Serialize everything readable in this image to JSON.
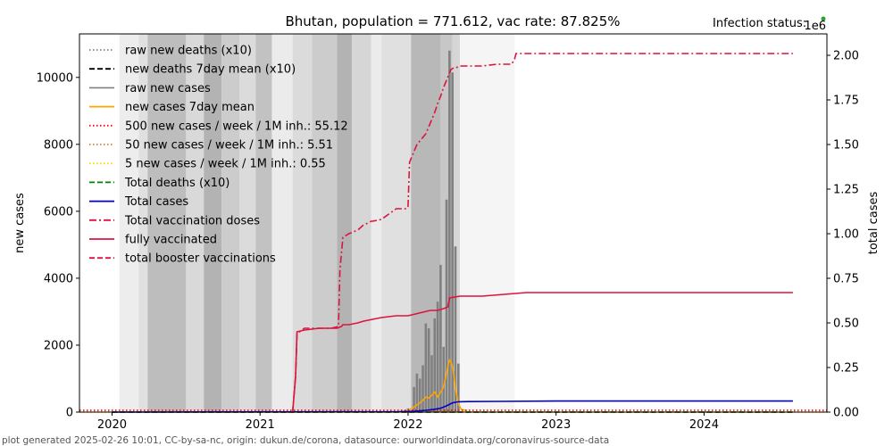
{
  "chart_data": {
    "type": "line",
    "title": "Bhutan, population = 771.612, vac rate: 87.825%",
    "status_label": "Infection status:",
    "status_color": "#2ca02c",
    "right_axis_multiplier": "1e6",
    "xlabel": "",
    "ylabel_left": "new cases",
    "ylabel_right": "total cases",
    "footer": "plot generated 2025-02-26 10:01, CC-by-sa-nc, origin: dukun.de/corona, datasource: ourworldindata.org/coronavirus-source-data",
    "xlim": [
      2019.78,
      2024.83
    ],
    "ylim_left": [
      0,
      11300
    ],
    "ylim_right": [
      0,
      2.12
    ],
    "x_ticks": [
      {
        "value": 2020,
        "label": "2020"
      },
      {
        "value": 2021,
        "label": "2021"
      },
      {
        "value": 2022,
        "label": "2022"
      },
      {
        "value": 2023,
        "label": "2023"
      },
      {
        "value": 2024,
        "label": "2024"
      }
    ],
    "y_ticks_left": [
      {
        "value": 0,
        "label": "0"
      },
      {
        "value": 2000,
        "label": "2000"
      },
      {
        "value": 4000,
        "label": "4000"
      },
      {
        "value": 6000,
        "label": "6000"
      },
      {
        "value": 8000,
        "label": "8000"
      },
      {
        "value": 10000,
        "label": "10000"
      }
    ],
    "y_ticks_right": [
      {
        "value": 0,
        "label": "0.00"
      },
      {
        "value": 0.25,
        "label": "0.25"
      },
      {
        "value": 0.5,
        "label": "0.50"
      },
      {
        "value": 0.75,
        "label": "0.75"
      },
      {
        "value": 1.0,
        "label": "1.00"
      },
      {
        "value": 1.25,
        "label": "1.25"
      },
      {
        "value": 1.5,
        "label": "1.50"
      },
      {
        "value": 1.75,
        "label": "1.75"
      },
      {
        "value": 2.0,
        "label": "2.00"
      }
    ],
    "background_bands": [
      {
        "x0": 2020.05,
        "x1": 2020.18,
        "shade": 0.93
      },
      {
        "x0": 2020.18,
        "x1": 2020.24,
        "shade": 0.88
      },
      {
        "x0": 2020.24,
        "x1": 2020.5,
        "shade": 0.74
      },
      {
        "x0": 2020.5,
        "x1": 2020.62,
        "shade": 0.85
      },
      {
        "x0": 2020.62,
        "x1": 2020.74,
        "shade": 0.7
      },
      {
        "x0": 2020.74,
        "x1": 2020.86,
        "shade": 0.8
      },
      {
        "x0": 2020.86,
        "x1": 2020.97,
        "shade": 0.86
      },
      {
        "x0": 2020.97,
        "x1": 2021.08,
        "shade": 0.76
      },
      {
        "x0": 2021.08,
        "x1": 2021.22,
        "shade": 0.92
      },
      {
        "x0": 2021.22,
        "x1": 2021.35,
        "shade": 0.86
      },
      {
        "x0": 2021.35,
        "x1": 2021.52,
        "shade": 0.8
      },
      {
        "x0": 2021.52,
        "x1": 2021.62,
        "shade": 0.7
      },
      {
        "x0": 2021.62,
        "x1": 2021.75,
        "shade": 0.84
      },
      {
        "x0": 2021.75,
        "x1": 2021.82,
        "shade": 0.92
      },
      {
        "x0": 2021.82,
        "x1": 2022.02,
        "shade": 0.88
      },
      {
        "x0": 2022.02,
        "x1": 2022.22,
        "shade": 0.72
      },
      {
        "x0": 2022.22,
        "x1": 2022.3,
        "shade": 0.78
      },
      {
        "x0": 2022.3,
        "x1": 2022.35,
        "shade": 0.84
      },
      {
        "x0": 2022.35,
        "x1": 2022.72,
        "shade": 0.96
      }
    ],
    "series": [
      {
        "name": "raw new deaths (x10)",
        "color": "#808080",
        "style": "dotted",
        "axis": "left",
        "x": [
          2020.0,
          2024.6
        ],
        "y": [
          0,
          0
        ]
      },
      {
        "name": "new deaths 7day mean (x10)",
        "color": "#000000",
        "style": "dashed",
        "axis": "left",
        "x": [
          2020.0,
          2024.6
        ],
        "y": [
          0,
          0
        ]
      },
      {
        "name": "raw new cases",
        "color": "#808080",
        "style": "bars",
        "axis": "left",
        "x": [
          2021.95,
          2022.0,
          2022.04,
          2022.06,
          2022.08,
          2022.1,
          2022.12,
          2022.14,
          2022.16,
          2022.18,
          2022.2,
          2022.22,
          2022.24,
          2022.26,
          2022.28,
          2022.3,
          2022.32,
          2022.34
        ],
        "y": [
          40,
          110,
          750,
          1150,
          1000,
          1400,
          2650,
          2500,
          1700,
          2800,
          3300,
          4400,
          1950,
          6350,
          10800,
          10150,
          4950,
          1450
        ]
      },
      {
        "name": "new cases 7day mean",
        "color": "#ffa500",
        "style": "solid",
        "axis": "left",
        "x": [
          2021.95,
          2022.0,
          2022.05,
          2022.08,
          2022.1,
          2022.12,
          2022.14,
          2022.16,
          2022.18,
          2022.2,
          2022.22,
          2022.24,
          2022.26,
          2022.27,
          2022.28,
          2022.29,
          2022.3,
          2022.31,
          2022.32,
          2022.34,
          2022.36,
          2022.4
        ],
        "y": [
          10,
          40,
          180,
          280,
          350,
          450,
          420,
          500,
          600,
          450,
          600,
          750,
          1150,
          1400,
          1550,
          1500,
          1350,
          1100,
          700,
          250,
          80,
          40
        ]
      },
      {
        "name": "500 new cases / week / 1M inh.: 55.12",
        "color": "#ff0000",
        "style": "dotted",
        "axis": "left",
        "x": [
          2019.78,
          2024.83
        ],
        "y": [
          55.12,
          55.12
        ]
      },
      {
        "name": "50 new cases / week / 1M inh.: 5.51",
        "color": "#cd853f",
        "style": "dotted",
        "axis": "left",
        "x": [
          2019.78,
          2024.83
        ],
        "y": [
          5.51,
          5.51
        ]
      },
      {
        "name": "5 new cases / week / 1M inh.: 0.55",
        "color": "#ffd700",
        "style": "dotted",
        "axis": "left",
        "x": [
          2019.78,
          2024.83
        ],
        "y": [
          0.55,
          0.55
        ]
      },
      {
        "name": "Total deaths (x10)",
        "color": "#008000",
        "style": "dashed",
        "axis": "right",
        "x": [
          2020.0,
          2024.6
        ],
        "y": [
          0,
          0
        ]
      },
      {
        "name": "Total cases",
        "color": "#0000cd",
        "style": "solid",
        "axis": "right",
        "x": [
          2020.0,
          2021.95,
          2022.05,
          2022.12,
          2022.18,
          2022.22,
          2022.26,
          2022.3,
          2022.34,
          2022.4,
          2022.6,
          2023.0,
          2024.6
        ],
        "y": [
          0,
          0.002,
          0.005,
          0.01,
          0.016,
          0.022,
          0.035,
          0.052,
          0.058,
          0.059,
          0.06,
          0.062,
          0.062
        ]
      },
      {
        "name": "Total vaccination doses",
        "color": "#dc143c",
        "style": "dashdot",
        "axis": "right",
        "x": [
          2021.22,
          2021.24,
          2021.25,
          2021.3,
          2021.4,
          2021.48,
          2021.53,
          2021.54,
          2021.56,
          2021.6,
          2021.66,
          2021.7,
          2021.73,
          2021.75,
          2021.76,
          2021.82,
          2021.92,
          2021.99,
          2022.0,
          2022.01,
          2022.03,
          2022.06,
          2022.08,
          2022.12,
          2022.14,
          2022.18,
          2022.2,
          2022.22,
          2022.24,
          2022.26,
          2022.28,
          2022.29,
          2022.31,
          2022.32,
          2022.36,
          2022.5,
          2022.6,
          2022.7,
          2022.72,
          2022.73,
          2022.8,
          2023.0,
          2024.6
        ],
        "y": [
          0,
          0.2,
          0.44,
          0.47,
          0.47,
          0.47,
          0.48,
          0.8,
          0.98,
          1.0,
          1.02,
          1.05,
          1.06,
          1.07,
          1.07,
          1.08,
          1.14,
          1.14,
          1.15,
          1.4,
          1.44,
          1.5,
          1.52,
          1.56,
          1.6,
          1.68,
          1.73,
          1.77,
          1.82,
          1.86,
          1.9,
          1.92,
          1.93,
          1.93,
          1.94,
          1.94,
          1.95,
          1.95,
          1.98,
          2.01,
          2.01,
          2.01,
          2.01
        ]
      },
      {
        "name": "fully vaccinated",
        "color": "#dc143c",
        "style": "solid",
        "axis": "right",
        "x": [
          2021.22,
          2021.24,
          2021.25,
          2021.3,
          2021.4,
          2021.47,
          2021.52,
          2021.55,
          2021.56,
          2021.6,
          2021.66,
          2021.7,
          2021.76,
          2021.82,
          2021.92,
          2022.0,
          2022.05,
          2022.1,
          2022.15,
          2022.2,
          2022.24,
          2022.27,
          2022.28,
          2022.35,
          2022.5,
          2022.8,
          2023.0,
          2024.6
        ],
        "y": [
          0,
          0.2,
          0.45,
          0.46,
          0.47,
          0.47,
          0.47,
          0.48,
          0.49,
          0.49,
          0.5,
          0.51,
          0.52,
          0.53,
          0.54,
          0.54,
          0.55,
          0.56,
          0.57,
          0.57,
          0.58,
          0.59,
          0.64,
          0.65,
          0.65,
          0.67,
          0.67,
          0.67
        ]
      },
      {
        "name": "total booster vaccinations",
        "color": "#dc143c",
        "style": "dashed",
        "axis": "right",
        "x": [],
        "y": []
      }
    ]
  }
}
